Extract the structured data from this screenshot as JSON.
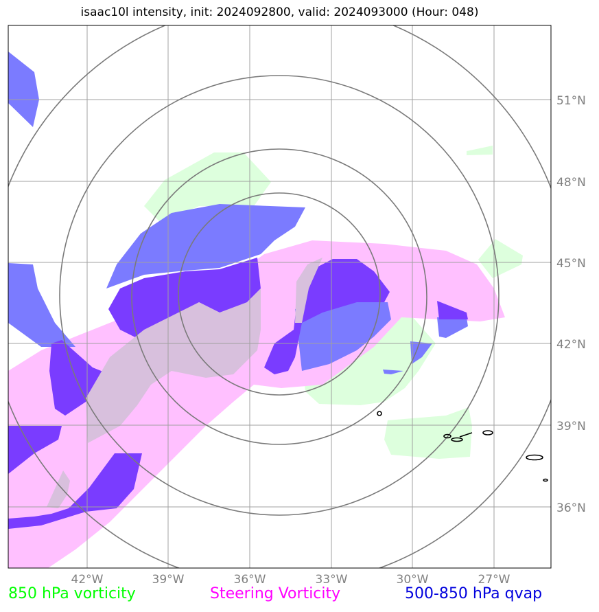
{
  "title": "isaac10l intensity, init: 2024092800, valid: 2024093000 (Hour: 048)",
  "map": {
    "lon_ticks": [
      "42°W",
      "39°W",
      "36°W",
      "33°W",
      "30°W",
      "27°W"
    ],
    "lat_ticks": [
      "51°N",
      "48°N",
      "45°N",
      "42°N",
      "39°N",
      "36°N"
    ],
    "range_rings": 4,
    "gridlines": true
  },
  "legend": [
    {
      "label": "850 hPa vorticity",
      "color": "#00ff00"
    },
    {
      "label": "Steering Vorticity",
      "color": "#ff00ff"
    },
    {
      "label": "500-850 hPa qvap",
      "color": "#0000dd"
    }
  ],
  "fill_colors": {
    "vort850": "#ddffdd",
    "steering": "#ffc0ff",
    "qvap": "#7b7bff",
    "qvap_dark": "#7a3cff",
    "overlap": "#d8c0dd"
  }
}
